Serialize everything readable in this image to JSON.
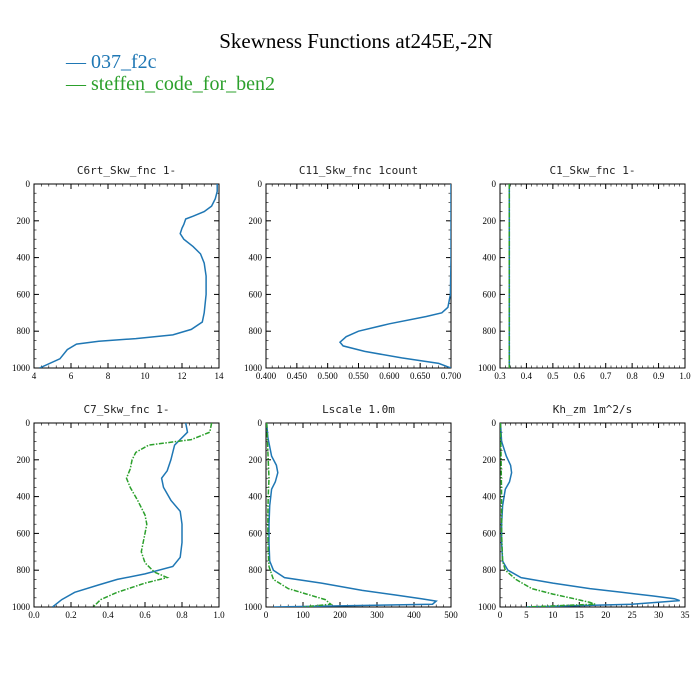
{
  "title": "Skewness Functions at245E,-2N",
  "legend": [
    {
      "label": "037_f2c",
      "color": "#1f77b4"
    },
    {
      "label": "steffen_code_for_ben2",
      "color": "#2ca02c"
    }
  ],
  "colors": {
    "series1": "#1f77b4",
    "series2": "#2ca02c"
  },
  "chart_data": [
    {
      "type": "line",
      "title": "C6rt_Skw_fnc  1-",
      "xlim": [
        4,
        14
      ],
      "xticks": [
        "4",
        "6",
        "8",
        "10",
        "12",
        "14"
      ],
      "ylim": [
        0,
        1000
      ],
      "yticks": [
        "0",
        "200",
        "400",
        "600",
        "800",
        "1000"
      ],
      "y_inverted": true,
      "series": [
        {
          "name": "037_f2c",
          "color": "#1f77b4",
          "points": [
            [
              13.9,
              0
            ],
            [
              13.9,
              40
            ],
            [
              13.8,
              80
            ],
            [
              13.6,
              120
            ],
            [
              13.2,
              150
            ],
            [
              12.6,
              175
            ],
            [
              12.2,
              190
            ],
            [
              12.1,
              220
            ],
            [
              12.0,
              240
            ],
            [
              11.9,
              270
            ],
            [
              12.1,
              300
            ],
            [
              12.6,
              340
            ],
            [
              13.0,
              380
            ],
            [
              13.2,
              430
            ],
            [
              13.3,
              500
            ],
            [
              13.3,
              600
            ],
            [
              13.2,
              700
            ],
            [
              13.1,
              750
            ],
            [
              12.5,
              790
            ],
            [
              11.5,
              820
            ],
            [
              9.5,
              840
            ],
            [
              7.5,
              855
            ],
            [
              6.3,
              870
            ],
            [
              5.8,
              900
            ],
            [
              5.4,
              950
            ],
            [
              4.3,
              1000
            ]
          ]
        },
        {
          "name": "steffen_code_for_ben2",
          "color": "#2ca02c",
          "points": []
        }
      ]
    },
    {
      "type": "line",
      "title": "C11_Skw_fnc  1count",
      "xlim": [
        0.4,
        0.7
      ],
      "xticks": [
        "0.400",
        "0.450",
        "0.500",
        "0.550",
        "0.600",
        "0.650",
        "0.700"
      ],
      "ylim": [
        0,
        1000
      ],
      "yticks": [
        "0",
        "200",
        "400",
        "600",
        "800",
        "1000"
      ],
      "y_inverted": true,
      "series": [
        {
          "name": "037_f2c",
          "color": "#1f77b4",
          "points": [
            [
              0.7,
              0
            ],
            [
              0.7,
              400
            ],
            [
              0.699,
              600
            ],
            [
              0.695,
              670
            ],
            [
              0.685,
              700
            ],
            [
              0.66,
              720
            ],
            [
              0.6,
              760
            ],
            [
              0.55,
              800
            ],
            [
              0.53,
              830
            ],
            [
              0.52,
              860
            ],
            [
              0.525,
              880
            ],
            [
              0.56,
              910
            ],
            [
              0.62,
              945
            ],
            [
              0.68,
              975
            ],
            [
              0.7,
              1000
            ]
          ]
        },
        {
          "name": "steffen_code_for_ben2",
          "color": "#2ca02c",
          "points": []
        }
      ]
    },
    {
      "type": "line",
      "title": "C1_Skw_fnc  1-",
      "xlim": [
        0.3,
        1.0
      ],
      "xticks": [
        "0.3",
        "0.4",
        "0.5",
        "0.6",
        "0.7",
        "0.8",
        "0.9",
        "1.0"
      ],
      "ylim": [
        0,
        1000
      ],
      "yticks": [
        "0",
        "200",
        "400",
        "600",
        "800",
        "1000"
      ],
      "y_inverted": true,
      "series": [
        {
          "name": "037_f2c",
          "color": "#1f77b4",
          "points": [
            [
              0.335,
              0
            ],
            [
              0.335,
              1000
            ]
          ]
        },
        {
          "name": "steffen_code_for_ben2",
          "color": "#2ca02c",
          "points": [
            [
              0.335,
              0
            ],
            [
              0.335,
              1000
            ]
          ]
        }
      ]
    },
    {
      "type": "line",
      "title": "C7_Skw_fnc  1-",
      "xlim": [
        0.0,
        1.0
      ],
      "xticks": [
        "0.0",
        "0.2",
        "0.4",
        "0.6",
        "0.8",
        "1.0"
      ],
      "ylim": [
        0,
        1000
      ],
      "yticks": [
        "0",
        "200",
        "400",
        "600",
        "800",
        "1000"
      ],
      "y_inverted": true,
      "series": [
        {
          "name": "037_f2c",
          "color": "#1f77b4",
          "points": [
            [
              0.82,
              0
            ],
            [
              0.83,
              50
            ],
            [
              0.76,
              120
            ],
            [
              0.74,
              200
            ],
            [
              0.72,
              260
            ],
            [
              0.69,
              300
            ],
            [
              0.7,
              350
            ],
            [
              0.74,
              420
            ],
            [
              0.79,
              480
            ],
            [
              0.8,
              550
            ],
            [
              0.8,
              650
            ],
            [
              0.79,
              730
            ],
            [
              0.75,
              780
            ],
            [
              0.6,
              820
            ],
            [
              0.45,
              850
            ],
            [
              0.35,
              880
            ],
            [
              0.22,
              920
            ],
            [
              0.15,
              960
            ],
            [
              0.1,
              1000
            ]
          ]
        },
        {
          "name": "steffen_code_for_ben2",
          "color": "#2ca02c",
          "points": [
            [
              0.96,
              0
            ],
            [
              0.95,
              50
            ],
            [
              0.85,
              90
            ],
            [
              0.62,
              120
            ],
            [
              0.55,
              160
            ],
            [
              0.53,
              200
            ],
            [
              0.52,
              250
            ],
            [
              0.5,
              300
            ],
            [
              0.52,
              350
            ],
            [
              0.56,
              420
            ],
            [
              0.6,
              500
            ],
            [
              0.61,
              550
            ],
            [
              0.6,
              600
            ],
            [
              0.58,
              700
            ],
            [
              0.6,
              760
            ],
            [
              0.65,
              810
            ],
            [
              0.72,
              840
            ],
            [
              0.6,
              870
            ],
            [
              0.45,
              920
            ],
            [
              0.36,
              960
            ],
            [
              0.32,
              1000
            ]
          ]
        }
      ]
    },
    {
      "type": "line",
      "title": "Lscale  1.0m",
      "xlim": [
        0,
        500
      ],
      "xticks": [
        "0",
        "100",
        "200",
        "300",
        "400",
        "500"
      ],
      "ylim": [
        0,
        1000
      ],
      "yticks": [
        "0",
        "200",
        "400",
        "600",
        "800",
        "1000"
      ],
      "y_inverted": true,
      "series": [
        {
          "name": "037_f2c",
          "color": "#1f77b4",
          "points": [
            [
              2,
              0
            ],
            [
              5,
              80
            ],
            [
              15,
              180
            ],
            [
              28,
              230
            ],
            [
              32,
              270
            ],
            [
              25,
              320
            ],
            [
              15,
              360
            ],
            [
              10,
              450
            ],
            [
              8,
              550
            ],
            [
              8,
              650
            ],
            [
              10,
              750
            ],
            [
              20,
              800
            ],
            [
              50,
              840
            ],
            [
              150,
              870
            ],
            [
              260,
              910
            ],
            [
              350,
              935
            ],
            [
              420,
              955
            ],
            [
              460,
              968
            ],
            [
              450,
              985
            ],
            [
              20,
              1000
            ]
          ]
        },
        {
          "name": "steffen_code_for_ben2",
          "color": "#2ca02c",
          "points": [
            [
              2,
              0
            ],
            [
              4,
              100
            ],
            [
              6,
              200
            ],
            [
              8,
              300
            ],
            [
              6,
              400
            ],
            [
              5,
              500
            ],
            [
              5,
              600
            ],
            [
              6,
              700
            ],
            [
              8,
              780
            ],
            [
              20,
              850
            ],
            [
              60,
              900
            ],
            [
              110,
              930
            ],
            [
              160,
              960
            ],
            [
              175,
              985
            ],
            [
              100,
              1000
            ]
          ]
        }
      ]
    },
    {
      "type": "line",
      "title": "Kh_zm  1m^2/s",
      "xlim": [
        0,
        35
      ],
      "xticks": [
        "0",
        "5",
        "10",
        "15",
        "20",
        "25",
        "30",
        "35"
      ],
      "ylim": [
        0,
        1000
      ],
      "yticks": [
        "0",
        "200",
        "400",
        "600",
        "800",
        "1000"
      ],
      "y_inverted": true,
      "series": [
        {
          "name": "037_f2c",
          "color": "#1f77b4",
          "points": [
            [
              0.1,
              0
            ],
            [
              0.3,
              100
            ],
            [
              1.2,
              180
            ],
            [
              2.0,
              230
            ],
            [
              2.2,
              270
            ],
            [
              1.8,
              320
            ],
            [
              1.0,
              360
            ],
            [
              0.5,
              450
            ],
            [
              0.3,
              550
            ],
            [
              0.3,
              650
            ],
            [
              0.5,
              750
            ],
            [
              1.5,
              800
            ],
            [
              4,
              840
            ],
            [
              10,
              870
            ],
            [
              17,
              900
            ],
            [
              23,
              920
            ],
            [
              29,
              940
            ],
            [
              33,
              955
            ],
            [
              34,
              965
            ],
            [
              25,
              985
            ],
            [
              5,
              1000
            ]
          ]
        },
        {
          "name": "steffen_code_for_ben2",
          "color": "#2ca02c",
          "points": [
            [
              0.1,
              0
            ],
            [
              0.2,
              200
            ],
            [
              0.3,
              400
            ],
            [
              0.3,
              600
            ],
            [
              0.5,
              750
            ],
            [
              1.0,
              800
            ],
            [
              3,
              850
            ],
            [
              6,
              900
            ],
            [
              10,
              930
            ],
            [
              14,
              955
            ],
            [
              17,
              975
            ],
            [
              18,
              985
            ],
            [
              5,
              1000
            ]
          ]
        }
      ]
    }
  ]
}
